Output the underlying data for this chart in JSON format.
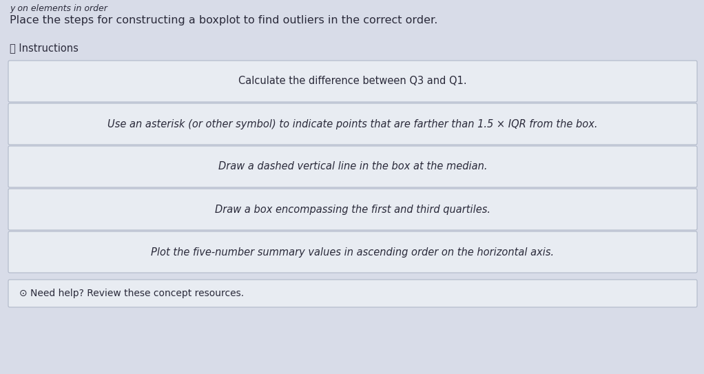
{
  "title": "Place the steps for constructing a boxplot to find outliers in the correct order.",
  "instructions_label": "ⓘ Instructions",
  "steps": [
    "Calculate the difference between Q3 and Q1.",
    "Use an asterisk (or other symbol) to indicate points that are farther than 1.5 × IQR from the box.",
    "Draw a dashed vertical line in the box at the median.",
    "Draw a box encompassing the first and third quartiles.",
    "Plot the five-number summary values in ascending order on the horizontal axis."
  ],
  "footer": "⊙ Need help? Review these concept resources.",
  "bg_color": "#d8dce8",
  "card_color": "#e8ecf2",
  "card_border_color": "#b0b8c8",
  "title_fontsize": 11.5,
  "step_fontsize": 10.5,
  "instructions_fontsize": 10.5,
  "footer_fontsize": 10,
  "text_color": "#2a2a3a",
  "footer_color": "#2a2a3a",
  "step_text_italic": [
    false,
    true,
    true,
    true,
    true
  ]
}
